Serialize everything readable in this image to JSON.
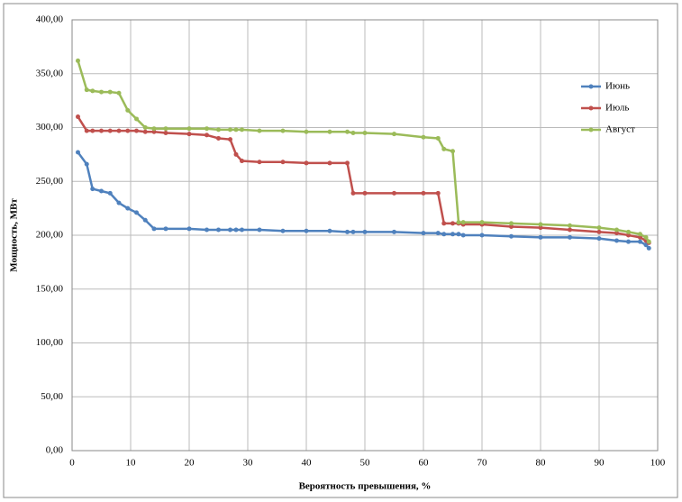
{
  "chart_data": {
    "type": "line",
    "xlabel": "Вероятность превышения, %",
    "ylabel": "Мощность, МВт",
    "x": [
      1,
      2.5,
      3.5,
      5,
      6.5,
      8,
      9.5,
      11,
      12.5,
      14,
      16,
      20,
      23,
      25,
      27,
      28,
      29,
      32,
      36,
      40,
      44,
      47,
      48,
      50,
      55,
      60,
      62.5,
      63.5,
      65,
      66,
      66.8,
      70,
      75,
      80,
      85,
      90,
      93,
      95,
      97,
      98,
      98.5
    ],
    "series": [
      {
        "name": "Июнь",
        "color": "#4f81bd",
        "values": [
          277,
          266,
          243,
          241,
          239,
          230,
          225,
          221,
          214,
          206,
          206,
          206,
          205,
          205,
          205,
          205,
          205,
          205,
          204,
          204,
          204,
          203,
          203,
          203,
          203,
          202,
          202,
          201,
          201,
          201,
          200,
          200,
          199,
          198,
          198,
          197,
          195,
          194,
          194,
          191,
          188
        ]
      },
      {
        "name": "Июль",
        "color": "#c0504d",
        "values": [
          310,
          297,
          297,
          297,
          297,
          297,
          297,
          297,
          296,
          296,
          295,
          294,
          293,
          290,
          289,
          275,
          269,
          268,
          268,
          267,
          267,
          267,
          239,
          239,
          239,
          239,
          239,
          211,
          211,
          211,
          210,
          210,
          208,
          207,
          205,
          203,
          202,
          200,
          198,
          195,
          193
        ]
      },
      {
        "name": "Август",
        "color": "#9bbb59",
        "values": [
          362,
          335,
          334,
          333,
          333,
          332,
          316,
          308,
          300,
          299,
          299,
          299,
          299,
          298,
          298,
          298,
          298,
          297,
          297,
          296,
          296,
          296,
          295,
          295,
          294,
          291,
          290,
          280,
          278,
          212,
          212,
          212,
          211,
          210,
          209,
          207,
          205,
          203,
          201,
          198,
          194
        ]
      }
    ],
    "xlim": [
      0,
      100
    ],
    "xticks": [
      0,
      10,
      20,
      30,
      40,
      50,
      60,
      70,
      80,
      90,
      100
    ],
    "ylim": [
      0,
      400
    ],
    "yticks": [
      {
        "value": 0,
        "label": "0,00"
      },
      {
        "value": 50,
        "label": "50,00"
      },
      {
        "value": 100,
        "label": "100,00"
      },
      {
        "value": 150,
        "label": "150,00"
      },
      {
        "value": 200,
        "label": "200,00"
      },
      {
        "value": 250,
        "label": "250,00"
      },
      {
        "value": 300,
        "label": "300,00"
      },
      {
        "value": 350,
        "label": "350,00"
      },
      {
        "value": 400,
        "label": "400,00"
      }
    ],
    "grid": true,
    "legend": "right"
  }
}
